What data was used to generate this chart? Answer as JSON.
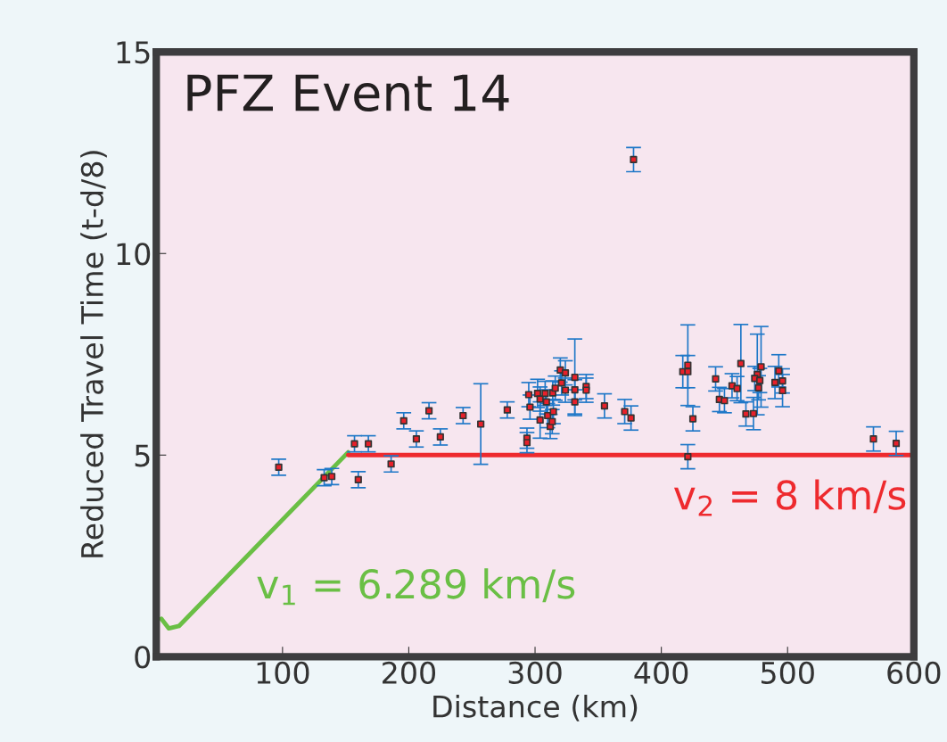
{
  "chart_data": {
    "type": "scatter",
    "title": "PFZ Event 14",
    "xlabel": "Distance (km)",
    "ylabel": "Reduced Travel Time (t-d/8)",
    "xlim": [
      0,
      600
    ],
    "ylim": [
      0,
      15
    ],
    "xticks": [
      100,
      200,
      300,
      400,
      500,
      600
    ],
    "yticks": [
      0,
      5,
      10,
      15
    ],
    "grid": false,
    "series": [
      {
        "type": "line",
        "name": "v$_{1}$ = 6.289 km/s",
        "color": "#6abf45",
        "x": [
          4,
          10,
          18,
          152
        ],
        "values": [
          0.94,
          0.7,
          0.76,
          5.07
        ]
      },
      {
        "type": "line",
        "name": "v$_{2}$ = 8 km/s",
        "color": "#ee2a2e",
        "x": [
          152,
          600
        ],
        "values": [
          5.0,
          5.0
        ]
      },
      {
        "marker": "square",
        "color": "#e8202a",
        "x": [
          97,
          133,
          139,
          157,
          168,
          160,
          186,
          196,
          206,
          216,
          225,
          243,
          257,
          278,
          293.6,
          293.6,
          295,
          296,
          302,
          304,
          304,
          308,
          309,
          310,
          312,
          314,
          314.5,
          313.6,
          316,
          320,
          324,
          321,
          324,
          331.5,
          331.5,
          331.5,
          340.5,
          340.5,
          355,
          371,
          376,
          378,
          417,
          421,
          421,
          425,
          421,
          443,
          446,
          450,
          456,
          460,
          463,
          467,
          473,
          476,
          474,
          478,
          477,
          479,
          490,
          493,
          496,
          496,
          568,
          586
        ],
        "values": [
          4.7,
          4.44,
          4.47,
          5.28,
          5.28,
          4.39,
          4.78,
          5.85,
          5.4,
          6.1,
          5.45,
          5.98,
          5.77,
          6.12,
          5.42,
          5.31,
          6.5,
          6.19,
          6.53,
          6.39,
          5.87,
          6.53,
          6.32,
          5.98,
          5.71,
          6.54,
          6.08,
          5.83,
          6.66,
          7.11,
          7.04,
          6.79,
          6.61,
          6.93,
          6.62,
          6.32,
          6.7,
          6.61,
          6.22,
          6.08,
          5.92,
          12.33,
          7.07,
          7.07,
          7.23,
          5.9,
          4.96,
          6.89,
          6.38,
          6.35,
          6.72,
          6.65,
          7.27,
          6.02,
          6.03,
          7.0,
          6.9,
          6.85,
          6.67,
          7.19,
          6.8,
          7.09,
          6.84,
          6.6,
          5.4,
          5.29
        ],
        "errors": [
          0.2,
          0.2,
          0.2,
          0.2,
          0.2,
          0.2,
          0.2,
          0.2,
          0.2,
          0.2,
          0.2,
          0.2,
          1.0,
          0.2,
          0.25,
          0.25,
          0.3,
          0.3,
          0.35,
          0.3,
          0.45,
          0.3,
          0.3,
          0.3,
          0.3,
          0.3,
          0.3,
          0.3,
          0.3,
          0.3,
          0.3,
          0.3,
          0.3,
          0.95,
          0.25,
          0.3,
          0.3,
          0.3,
          0.3,
          0.3,
          0.3,
          0.3,
          0.4,
          0.4,
          1.0,
          0.3,
          0.3,
          0.3,
          0.3,
          0.3,
          0.3,
          0.3,
          0.97,
          0.3,
          0.4,
          1.0,
          0.3,
          0.3,
          0.3,
          1.0,
          0.4,
          0.4,
          0.3,
          0.4,
          0.3,
          0.3
        ]
      }
    ]
  }
}
